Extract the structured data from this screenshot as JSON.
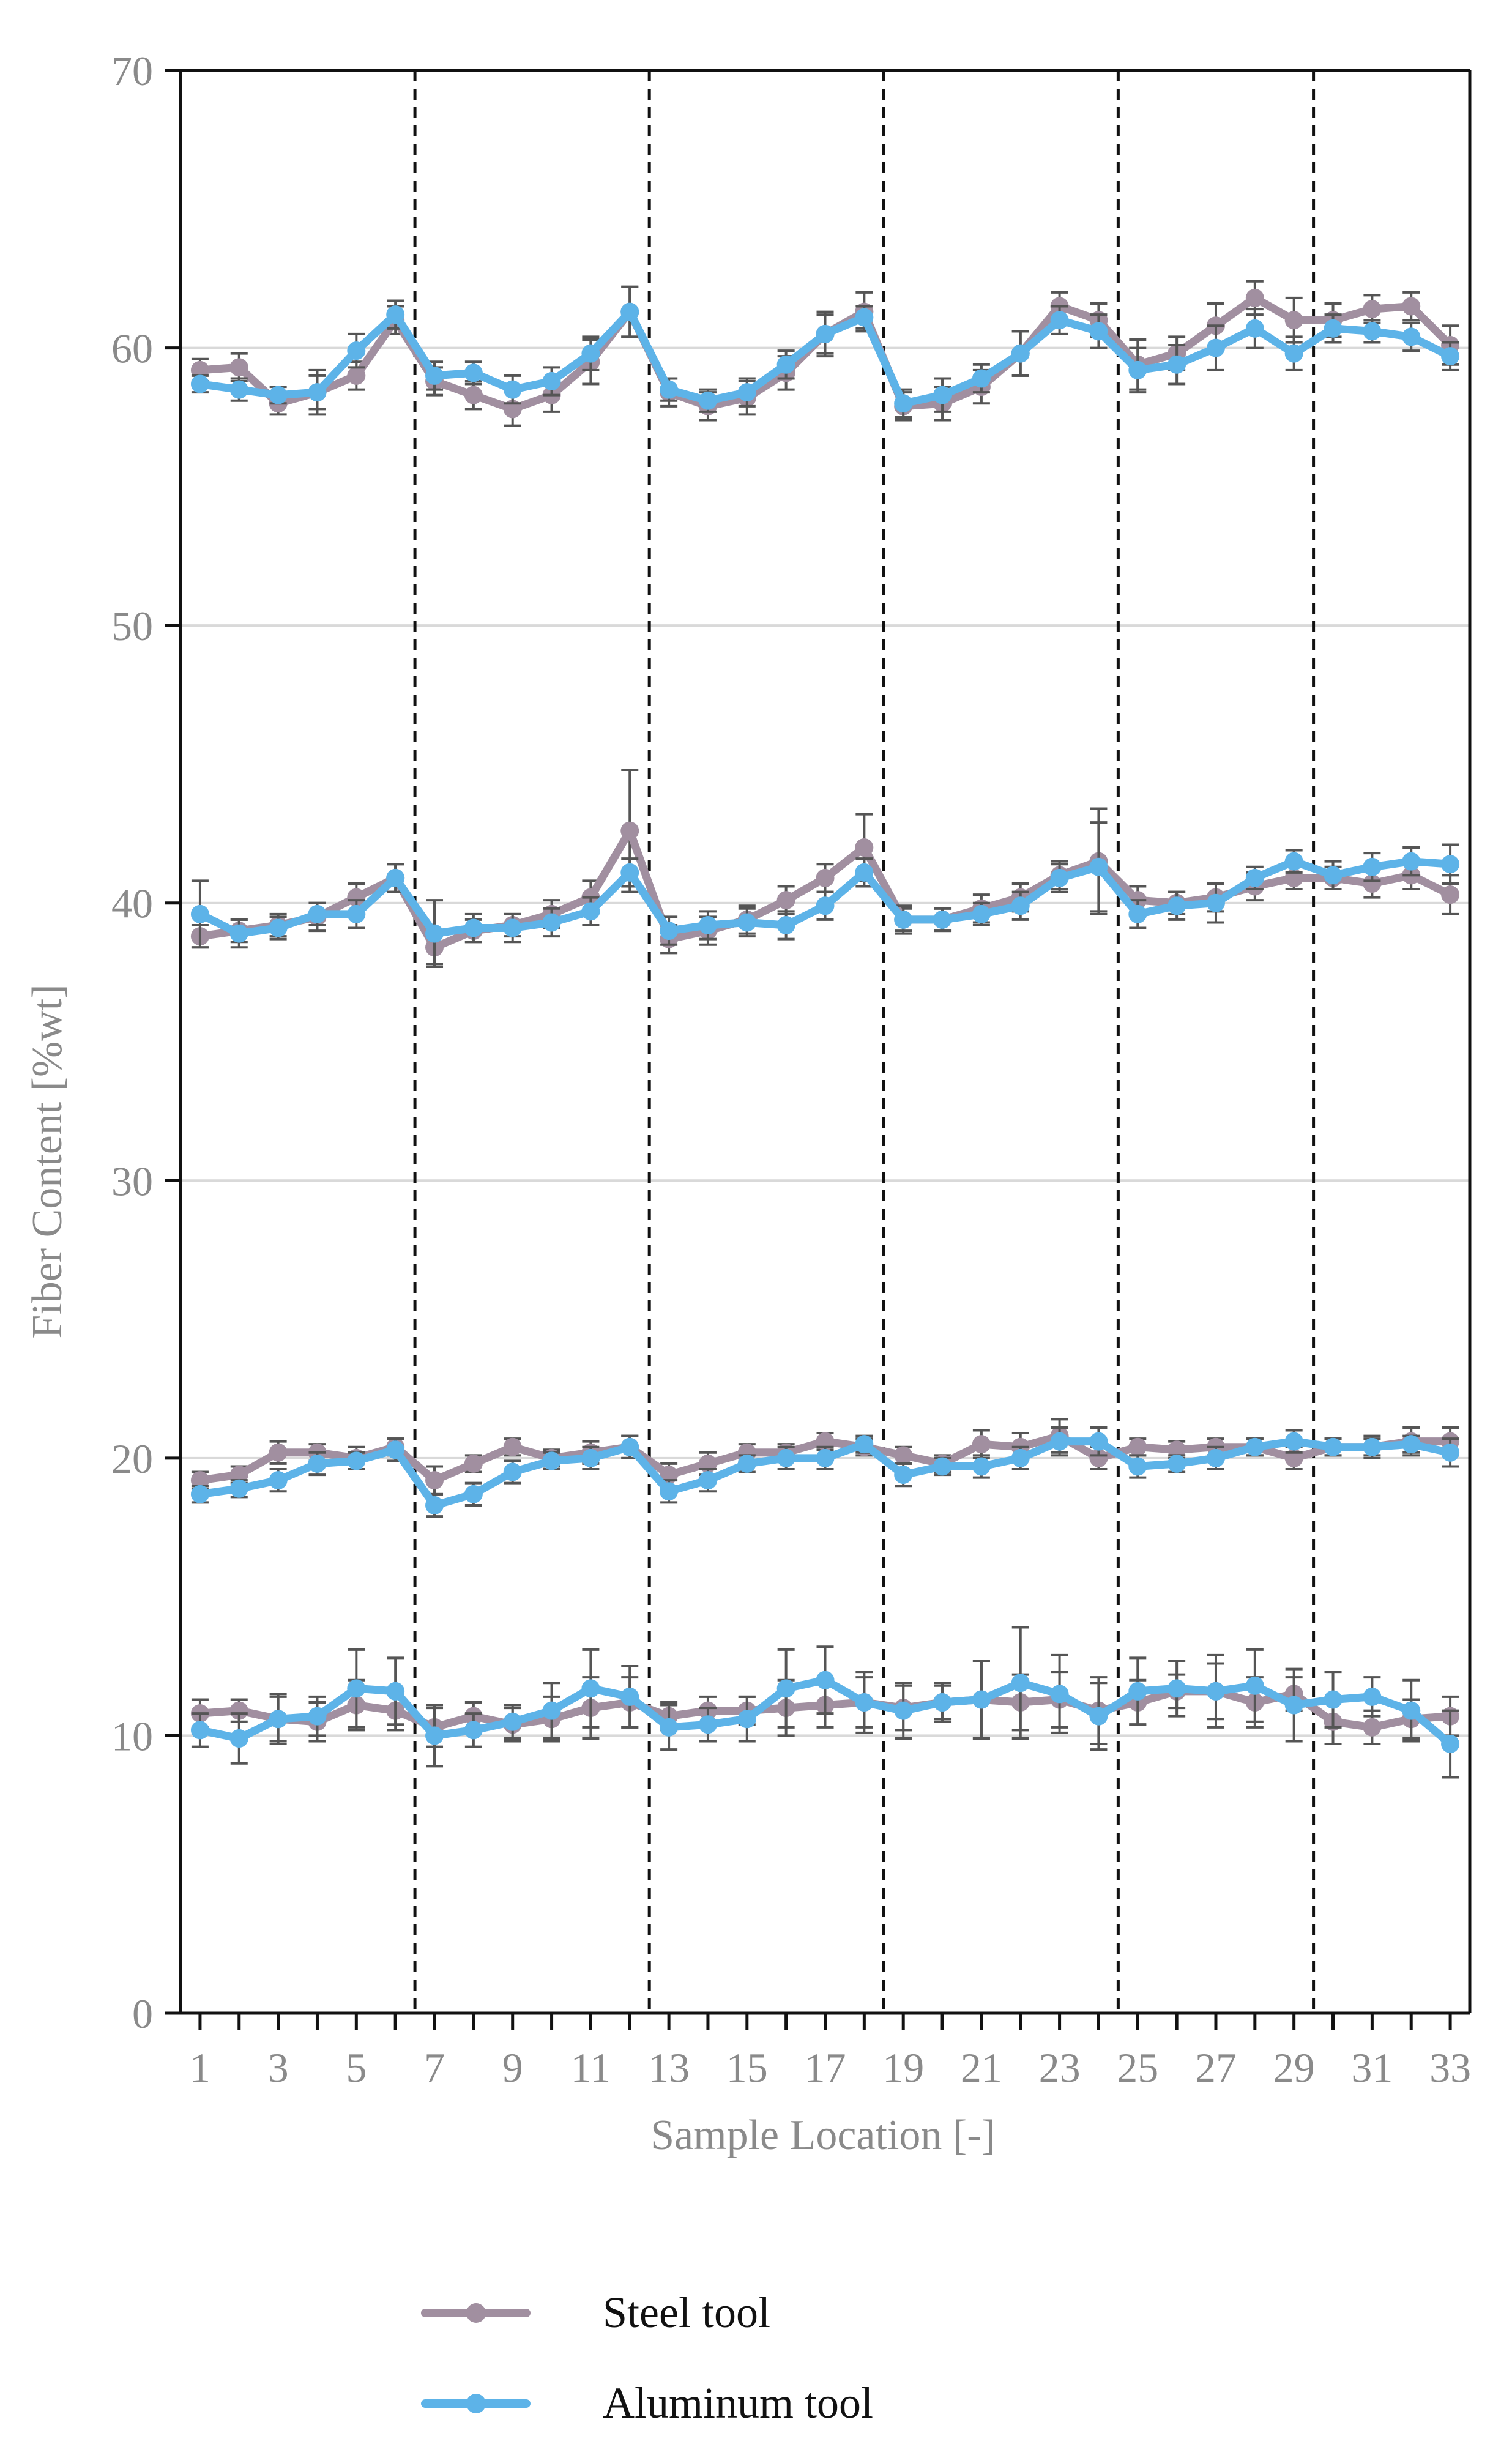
{
  "chart_data": {
    "type": "line",
    "title": "",
    "xlabel": "Sample Location [-]",
    "ylabel": "Fiber Content [%wt]",
    "xlim": [
      0.5,
      33.5
    ],
    "ylim": [
      0,
      70
    ],
    "yticks": [
      0,
      10,
      20,
      30,
      40,
      50,
      60,
      70
    ],
    "xticks": [
      1,
      3,
      5,
      7,
      9,
      11,
      13,
      15,
      17,
      19,
      21,
      23,
      25,
      27,
      29,
      31,
      33
    ],
    "ygrid": true,
    "section_dividers_x": [
      6.5,
      12.5,
      18.5,
      24.5,
      29.5
    ],
    "legend": {
      "position": "bottom-center"
    },
    "colors": {
      "steel": "#a18fa0",
      "aluminum": "#5db3e8",
      "error_bar": "#555555",
      "divider": "#111111",
      "grid": "#d9d9d9",
      "axis": "#111111"
    },
    "groups": [
      "~10 %wt",
      "~20 %wt",
      "~40 %wt",
      "~60 %wt"
    ],
    "series": [
      {
        "name": "Steel tool",
        "color": "#a18fa0",
        "groups": [
          {
            "values": [
              10.8,
              10.9,
              10.6,
              10.5,
              11.1,
              10.9,
              10.3,
              10.7,
              10.4,
              10.6,
              11.0,
              11.2,
              10.7,
              10.9,
              10.9,
              11.0,
              11.1,
              11.2,
              11.0,
              11.2,
              11.3,
              11.2,
              11.3,
              10.9,
              11.2,
              11.6,
              11.6,
              11.2,
              11.5,
              10.5,
              10.3,
              10.6,
              10.7
            ],
            "errors": [
              0.5,
              0.4,
              0.9,
              0.7,
              0.9,
              0.7,
              0.7,
              0.5,
              0.6,
              0.8,
              1.1,
              0.9,
              0.5,
              0.5,
              0.5,
              1.0,
              0.8,
              0.9,
              0.8,
              0.6,
              1.4,
              1.0,
              1.0,
              1.2,
              0.8,
              0.6,
              1.0,
              0.9,
              0.6,
              0.8,
              0.6,
              0.7,
              0.7
            ]
          },
          {
            "values": [
              19.2,
              19.4,
              20.2,
              20.2,
              20.0,
              20.4,
              19.2,
              19.8,
              20.4,
              20.0,
              20.2,
              20.4,
              19.4,
              19.8,
              20.2,
              20.2,
              20.6,
              20.4,
              20.1,
              19.8,
              20.5,
              20.4,
              20.8,
              20.0,
              20.4,
              20.3,
              20.4,
              20.4,
              20.0,
              20.4,
              20.4,
              20.6,
              20.6
            ],
            "errors": [
              0.3,
              0.3,
              0.4,
              0.3,
              0.4,
              0.3,
              0.5,
              0.3,
              0.3,
              0.3,
              0.4,
              0.4,
              0.4,
              0.4,
              0.3,
              0.3,
              0.3,
              0.3,
              0.3,
              0.3,
              0.5,
              0.5,
              0.6,
              0.4,
              0.3,
              0.3,
              0.3,
              0.3,
              0.4,
              0.3,
              0.4,
              0.5,
              0.5
            ]
          },
          {
            "values": [
              38.8,
              39.0,
              39.2,
              39.5,
              40.2,
              40.9,
              38.4,
              39.0,
              39.2,
              39.6,
              40.2,
              42.6,
              38.7,
              39.0,
              39.4,
              40.1,
              40.9,
              42.0,
              39.4,
              39.4,
              39.8,
              40.2,
              41.0,
              41.5,
              40.1,
              40.0,
              40.2,
              40.6,
              40.9,
              40.9,
              40.7,
              41.0,
              40.3
            ],
            "errors": [
              0.4,
              0.4,
              0.4,
              0.5,
              0.5,
              0.5,
              0.6,
              0.4,
              0.4,
              0.5,
              0.6,
              2.2,
              0.5,
              0.5,
              0.5,
              0.5,
              0.5,
              1.2,
              0.4,
              0.4,
              0.5,
              0.5,
              0.5,
              1.9,
              0.5,
              0.4,
              0.5,
              0.5,
              0.4,
              0.4,
              0.5,
              0.5,
              0.7
            ]
          },
          {
            "values": [
              59.2,
              59.3,
              58.0,
              58.4,
              59.0,
              61.0,
              58.8,
              58.3,
              57.8,
              58.3,
              59.5,
              61.3,
              58.4,
              57.9,
              58.2,
              59.1,
              60.5,
              61.3,
              57.9,
              58.0,
              58.6,
              59.8,
              61.5,
              61.0,
              59.4,
              59.8,
              60.8,
              61.8,
              61.0,
              61.0,
              61.4,
              61.5,
              60.1
            ],
            "errors": [
              0.4,
              0.5,
              0.4,
              0.8,
              0.5,
              0.5,
              0.5,
              0.5,
              0.6,
              0.6,
              0.8,
              0.9,
              0.5,
              0.5,
              0.6,
              0.6,
              0.8,
              0.7,
              0.5,
              0.6,
              0.6,
              0.8,
              0.5,
              0.6,
              0.9,
              0.6,
              0.8,
              0.6,
              0.8,
              0.6,
              0.5,
              0.5,
              0.7
            ]
          }
        ]
      },
      {
        "name": "Aluminum tool",
        "color": "#5db3e8",
        "groups": [
          {
            "values": [
              10.2,
              9.9,
              10.6,
              10.7,
              11.7,
              11.6,
              10.0,
              10.2,
              10.5,
              10.9,
              11.7,
              11.4,
              10.3,
              10.4,
              10.6,
              11.7,
              12.0,
              11.2,
              10.9,
              11.2,
              11.3,
              11.9,
              11.5,
              10.7,
              11.6,
              11.7,
              11.6,
              11.8,
              11.1,
              11.3,
              11.4,
              10.9,
              9.7
            ],
            "errors": [
              0.6,
              0.9,
              0.8,
              0.7,
              1.4,
              1.2,
              1.1,
              0.6,
              0.6,
              1.0,
              1.4,
              1.1,
              0.8,
              0.6,
              0.8,
              1.4,
              1.2,
              1.1,
              1.0,
              0.7,
              1.4,
              2.0,
              1.4,
              1.2,
              1.2,
              1.0,
              1.3,
              1.3,
              1.3,
              1.0,
              0.7,
              1.1,
              1.2
            ]
          },
          {
            "values": [
              18.7,
              18.9,
              19.2,
              19.8,
              19.9,
              20.3,
              18.3,
              18.7,
              19.5,
              19.9,
              20.0,
              20.4,
              18.8,
              19.2,
              19.8,
              20.0,
              20.0,
              20.5,
              19.4,
              19.7,
              19.7,
              20.0,
              20.6,
              20.6,
              19.7,
              19.8,
              20.0,
              20.4,
              20.6,
              20.4,
              20.4,
              20.5,
              20.2
            ],
            "errors": [
              0.3,
              0.3,
              0.4,
              0.4,
              0.3,
              0.4,
              0.4,
              0.4,
              0.4,
              0.3,
              0.4,
              0.4,
              0.4,
              0.4,
              0.3,
              0.4,
              0.4,
              0.3,
              0.4,
              0.3,
              0.4,
              0.4,
              0.5,
              0.5,
              0.4,
              0.3,
              0.4,
              0.3,
              0.4,
              0.3,
              0.3,
              0.3,
              0.5
            ]
          },
          {
            "values": [
              39.6,
              38.9,
              39.1,
              39.6,
              39.6,
              40.9,
              38.9,
              39.1,
              39.1,
              39.3,
              39.7,
              41.1,
              39.0,
              39.2,
              39.3,
              39.2,
              39.9,
              41.1,
              39.4,
              39.4,
              39.6,
              39.9,
              40.9,
              41.3,
              39.6,
              39.9,
              40.0,
              40.9,
              41.5,
              41.0,
              41.3,
              41.5,
              41.4
            ],
            "errors": [
              1.2,
              0.5,
              0.4,
              0.4,
              0.5,
              0.5,
              1.2,
              0.5,
              0.5,
              0.5,
              0.5,
              0.5,
              0.5,
              0.5,
              0.5,
              0.5,
              0.5,
              0.5,
              0.5,
              0.4,
              0.4,
              0.5,
              0.5,
              1.6,
              0.5,
              0.5,
              0.7,
              0.4,
              0.4,
              0.5,
              0.5,
              0.5,
              0.7
            ]
          },
          {
            "values": [
              58.7,
              58.5,
              58.3,
              58.4,
              59.9,
              61.2,
              59.0,
              59.1,
              58.5,
              58.8,
              59.8,
              61.3,
              58.5,
              58.1,
              58.4,
              59.4,
              60.5,
              61.1,
              58.0,
              58.3,
              58.9,
              59.8,
              61.0,
              60.6,
              59.2,
              59.4,
              60.0,
              60.7,
              59.8,
              60.7,
              60.6,
              60.4,
              59.7
            ],
            "errors": [
              0.3,
              0.4,
              0.3,
              0.6,
              0.6,
              0.5,
              0.5,
              0.4,
              0.5,
              0.5,
              0.6,
              0.9,
              0.4,
              0.4,
              0.5,
              0.5,
              0.7,
              0.4,
              0.5,
              0.6,
              0.5,
              0.8,
              0.5,
              0.6,
              0.8,
              0.7,
              0.8,
              0.7,
              0.6,
              0.5,
              0.4,
              0.5,
              0.5
            ]
          }
        ]
      }
    ]
  }
}
